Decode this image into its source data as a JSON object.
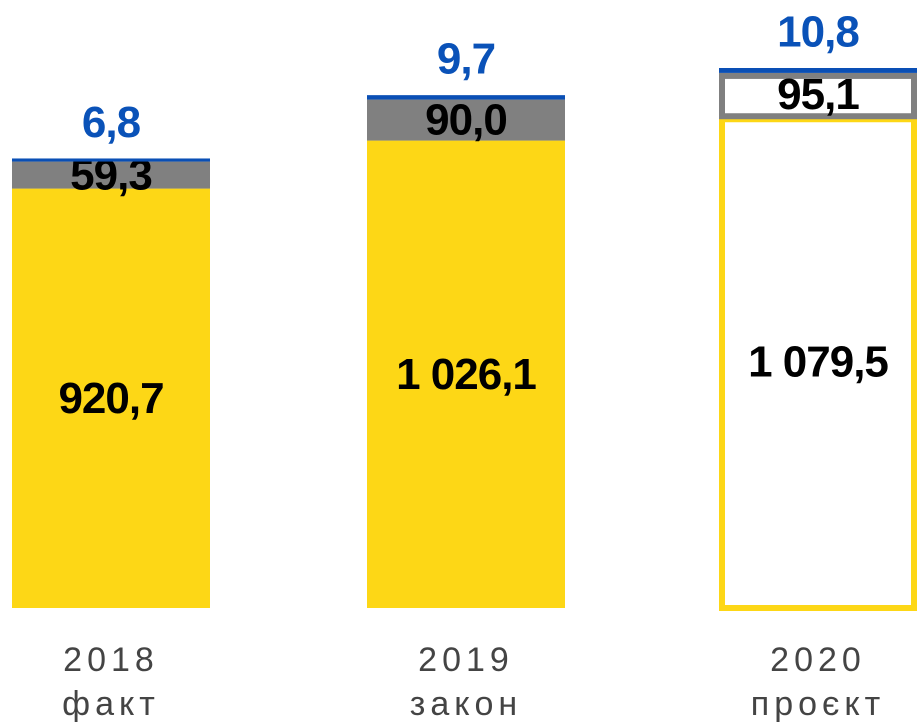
{
  "chart_data": {
    "type": "stacked_bar",
    "categories": [
      "2018\nфакт",
      "2019\nзакон",
      "2020\nпроєкт"
    ],
    "outlined": [
      false,
      false,
      true
    ],
    "series": [
      {
        "color": "#fdd716",
        "label_color": "#000000",
        "values": [
          920.7,
          1026.1,
          1079.5
        ],
        "value_labels": [
          "920,7",
          "1 026,1",
          "1 079,5"
        ]
      },
      {
        "color": "#808080",
        "label_color": "#000000",
        "values": [
          59.3,
          90.0,
          95.1
        ],
        "value_labels": [
          "59,3",
          "90,0",
          "95,1"
        ]
      },
      {
        "color": "#0a4fb5",
        "label_color": "#0a52b8",
        "values": [
          6.8,
          9.7,
          10.8
        ],
        "value_labels": [
          "6,8",
          "9,7",
          "10,8"
        ]
      }
    ]
  }
}
